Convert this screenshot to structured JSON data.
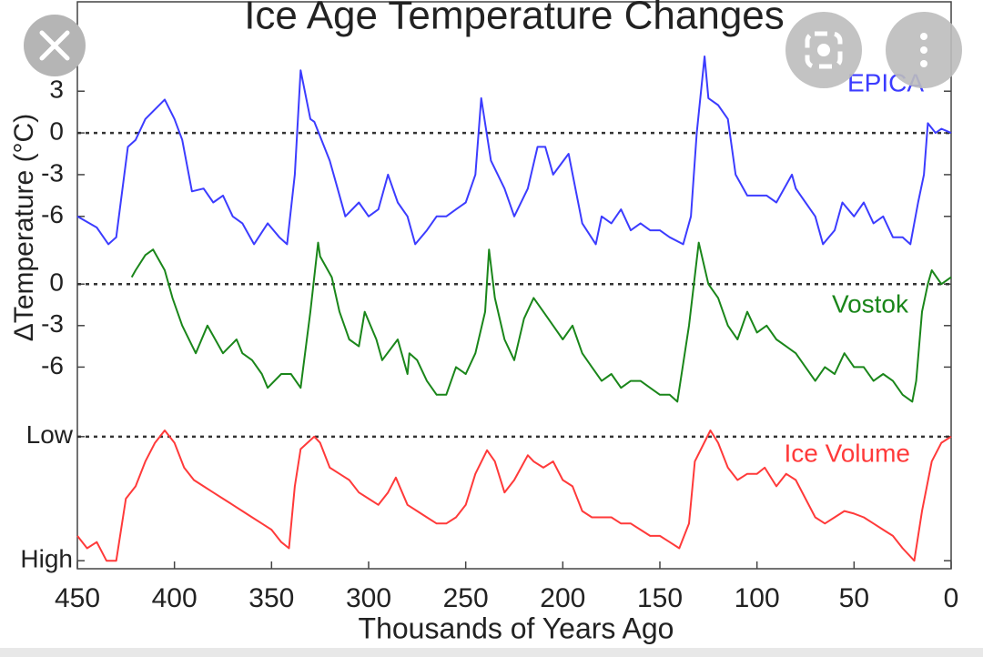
{
  "chart_data": [
    {
      "type": "line",
      "title": "Ice Age Temperature Changes",
      "ylabel": "ΔTemperature (°C)",
      "xlim": [
        450,
        0
      ],
      "ylim": [
        -8.5,
        5.5
      ],
      "yticks": [
        3,
        0,
        -3,
        -6
      ],
      "ref_line": 0,
      "x": [
        450,
        440,
        434,
        430,
        424,
        420,
        415,
        405,
        400,
        396,
        391,
        385,
        380,
        375,
        370,
        365,
        359,
        352,
        346,
        342,
        338,
        335,
        330,
        328,
        320,
        316,
        312,
        305,
        300,
        295,
        290,
        285,
        280,
        276,
        270,
        265,
        260,
        255,
        250,
        245,
        242,
        237,
        230,
        225,
        218,
        213,
        209,
        205,
        197,
        190,
        183,
        180,
        175,
        170,
        165,
        160,
        155,
        150,
        145,
        138,
        134,
        131,
        127,
        125,
        120,
        115,
        111,
        105,
        100,
        95,
        90,
        82,
        80,
        75,
        70,
        66,
        60,
        56,
        50,
        45,
        40,
        35,
        30,
        25,
        21,
        17,
        14,
        12,
        8,
        5,
        0
      ],
      "series": [
        {
          "name": "EPICA",
          "color": "#3c3cff",
          "values": [
            -6,
            -6.8,
            -8,
            -7.5,
            -1,
            -0.5,
            1,
            2.4,
            1,
            -0.5,
            -4.2,
            -4,
            -5,
            -4.5,
            -6,
            -6.5,
            -8,
            -6.5,
            -7.5,
            -8,
            -3,
            4.5,
            1,
            0.8,
            -2,
            -4,
            -6,
            -5,
            -6,
            -5.5,
            -3,
            -5,
            -6,
            -8,
            -7,
            -6,
            -6,
            -5.5,
            -5,
            -3,
            2.5,
            -2,
            -4,
            -6,
            -4,
            -1,
            -1,
            -3,
            -1.5,
            -6.5,
            -8,
            -6,
            -6.5,
            -5.5,
            -7,
            -6.5,
            -7,
            -7,
            -7.5,
            -8,
            -6,
            0,
            5.5,
            2.5,
            2,
            1,
            -3,
            -4.5,
            -4.5,
            -4.5,
            -5,
            -3,
            -4,
            -5,
            -6,
            -8,
            -7,
            -5,
            -6,
            -5,
            -6.5,
            -6,
            -7.5,
            -7.5,
            -8,
            -5,
            -3,
            0.7,
            0,
            0.3,
            0
          ]
        }
      ]
    },
    {
      "type": "line",
      "xlim": [
        450,
        0
      ],
      "ylim": [
        -9,
        3.5
      ],
      "yticks": [
        0,
        -3,
        -6
      ],
      "ref_line": 0,
      "x": [
        422,
        420,
        415,
        411,
        405,
        401,
        396,
        389,
        383,
        375,
        368,
        365,
        360,
        355,
        352,
        345,
        340,
        335,
        330,
        326,
        325,
        319,
        315,
        310,
        305,
        302,
        296,
        293,
        285,
        280,
        279,
        275,
        270,
        265,
        260,
        255,
        250,
        245,
        240,
        238,
        235,
        230,
        225,
        220,
        215,
        210,
        205,
        200,
        195,
        190,
        185,
        180,
        175,
        170,
        165,
        160,
        155,
        150,
        145,
        141,
        135,
        130,
        125,
        120,
        115,
        110,
        105,
        100,
        95,
        90,
        85,
        80,
        75,
        70,
        65,
        60,
        55,
        50,
        45,
        40,
        35,
        30,
        25,
        20,
        18,
        15,
        12,
        10,
        5,
        0
      ],
      "series": [
        {
          "name": "Vostok",
          "color": "#1a861a",
          "values": [
            0.5,
            1,
            2.1,
            2.5,
            1,
            -1,
            -3,
            -5,
            -3,
            -5,
            -4,
            -5,
            -5.5,
            -6.5,
            -7.5,
            -6.5,
            -6.5,
            -7.5,
            -2,
            3,
            2,
            0.5,
            -2,
            -4,
            -4.5,
            -2,
            -4,
            -5.5,
            -4,
            -6.5,
            -5,
            -5.5,
            -7,
            -8,
            -8,
            -6,
            -6.5,
            -5,
            -2,
            2.5,
            -1,
            -4,
            -5.5,
            -2.5,
            -1,
            -2,
            -3,
            -4,
            -3,
            -5,
            -6,
            -7,
            -6.5,
            -7.5,
            -7,
            -7,
            -7.5,
            -8,
            -8,
            -8.5,
            -3,
            3,
            0,
            -1,
            -3,
            -4,
            -2,
            -3.5,
            -3,
            -4,
            -4.5,
            -5,
            -6,
            -7,
            -6,
            -6.5,
            -5,
            -6,
            -6,
            -7,
            -6.5,
            -7,
            -8,
            -8.5,
            -7,
            -2,
            0,
            1,
            0,
            0.5
          ]
        }
      ]
    },
    {
      "type": "line",
      "xlabel": "Thousands of Years Ago",
      "xlim": [
        450,
        0
      ],
      "ylim": [
        -0.05,
        1.05
      ],
      "yticks": [
        {
          "value": 1,
          "label": "Low"
        },
        {
          "value": 0,
          "label": "High"
        }
      ],
      "ref_line": 1,
      "xticks": [
        450,
        400,
        350,
        300,
        250,
        200,
        150,
        100,
        50,
        0
      ],
      "x": [
        450,
        445,
        440,
        435,
        430,
        425,
        420,
        415,
        410,
        405,
        400,
        395,
        390,
        385,
        380,
        375,
        370,
        365,
        360,
        355,
        350,
        345,
        341,
        338,
        335,
        328,
        325,
        320,
        315,
        310,
        305,
        300,
        295,
        290,
        286,
        280,
        275,
        270,
        265,
        260,
        255,
        250,
        245,
        239,
        235,
        230,
        225,
        218,
        215,
        210,
        205,
        200,
        195,
        190,
        185,
        180,
        175,
        170,
        165,
        160,
        155,
        150,
        145,
        140,
        135,
        132,
        124,
        120,
        115,
        110,
        105,
        100,
        96,
        90,
        85,
        80,
        75,
        70,
        65,
        60,
        55,
        50,
        45,
        40,
        35,
        30,
        25,
        19,
        15,
        10,
        5,
        0
      ],
      "series": [
        {
          "name": "Ice Volume",
          "color": "#ff3a3a",
          "values": [
            0.2,
            0.1,
            0.15,
            0,
            0,
            0.5,
            0.6,
            0.8,
            0.95,
            1.05,
            0.95,
            0.75,
            0.65,
            0.6,
            0.55,
            0.5,
            0.45,
            0.4,
            0.35,
            0.3,
            0.25,
            0.15,
            0.1,
            0.6,
            0.9,
            1.0,
            0.95,
            0.75,
            0.7,
            0.65,
            0.55,
            0.5,
            0.45,
            0.55,
            0.67,
            0.45,
            0.4,
            0.35,
            0.3,
            0.3,
            0.35,
            0.45,
            0.7,
            0.89,
            0.8,
            0.55,
            0.65,
            0.85,
            0.8,
            0.75,
            0.8,
            0.65,
            0.6,
            0.4,
            0.35,
            0.35,
            0.35,
            0.3,
            0.3,
            0.25,
            0.2,
            0.2,
            0.15,
            0.1,
            0.3,
            0.8,
            1.05,
            0.95,
            0.75,
            0.65,
            0.7,
            0.7,
            0.75,
            0.6,
            0.7,
            0.65,
            0.5,
            0.35,
            0.3,
            0.35,
            0.4,
            0.38,
            0.35,
            0.3,
            0.25,
            0.2,
            0.1,
            0,
            0.4,
            0.8,
            0.95,
            1.0
          ]
        }
      ]
    }
  ]
}
